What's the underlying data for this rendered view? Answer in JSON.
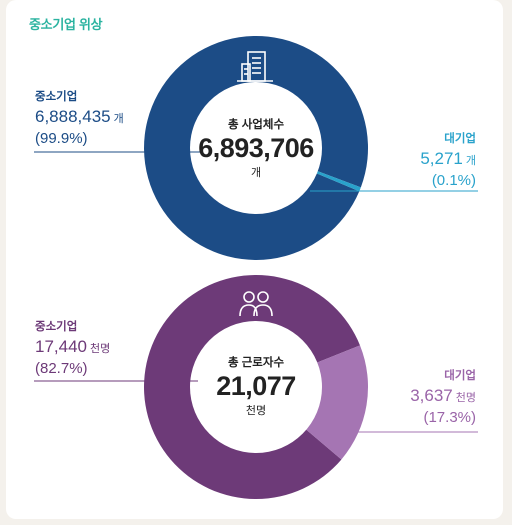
{
  "page_title": "중소기업 위상",
  "colors": {
    "biz_sme": "#1c4c86",
    "biz_large": "#29a2cb",
    "emp_sme": "#6d3a78",
    "emp_large": "#a575b3"
  },
  "icons": [
    "building-icon",
    "people-icon"
  ],
  "chart_data": [
    {
      "type": "pie",
      "donut": true,
      "title": "총 사업체수",
      "total": "6,893,706",
      "total_unit": "개",
      "unit": "개",
      "slices": [
        {
          "name": "중소기업",
          "value": 6888435,
          "value_label": "6,888,435",
          "percent_label": "(99.9%)"
        },
        {
          "name": "대기업",
          "value": 5271,
          "value_label": "5,271",
          "percent_label": "(0.1%)"
        }
      ]
    },
    {
      "type": "pie",
      "donut": true,
      "title": "총 근로자수",
      "total": "21,077",
      "total_unit": "천명",
      "unit": "천명",
      "slices": [
        {
          "name": "중소기업",
          "value": 17440,
          "value_label": "17,440",
          "percent_label": "(82.7%)"
        },
        {
          "name": "대기업",
          "value": 3637,
          "value_label": "3,637",
          "percent_label": "(17.3%)"
        }
      ]
    }
  ]
}
